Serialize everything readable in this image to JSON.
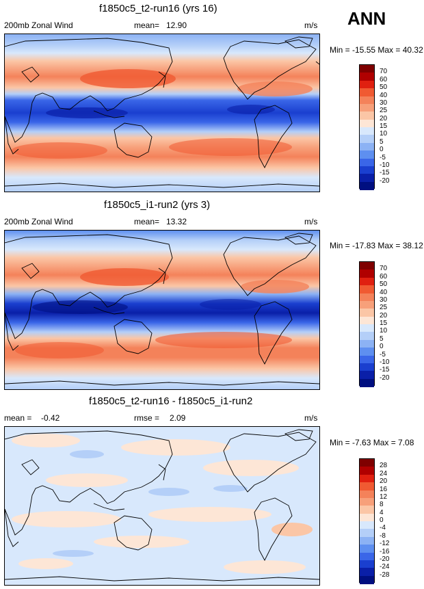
{
  "season": "ANN",
  "panels": [
    {
      "title": "f1850c5_t2-run16 (yrs 16)",
      "left_label": "200mb Zonal Wind",
      "stat_label": "mean=",
      "stat_value": "12.90",
      "units": "m/s",
      "minmax": "Min = -15.55 Max = 40.32",
      "colorbar_ticks": [
        "70",
        "60",
        "50",
        "40",
        "30",
        "25",
        "20",
        "15",
        "10",
        "5",
        "0",
        "-5",
        "-10",
        "-15",
        "-20"
      ],
      "colors": [
        "#7f0000",
        "#b00000",
        "#e02010",
        "#f05a32",
        "#f4825a",
        "#f7a07a",
        "#fbc6a6",
        "#fde6d6",
        "#d8e8fc",
        "#b4cff8",
        "#8cb2f4",
        "#5e8ff0",
        "#3a66e8",
        "#1a3fcf",
        "#0a1fa8",
        "#000f80"
      ]
    },
    {
      "title": "f1850c5_i1-run2 (yrs 3)",
      "left_label": "200mb Zonal Wind",
      "stat_label": "mean=",
      "stat_value": "13.32",
      "units": "m/s",
      "minmax": "Min = -17.83 Max = 38.12",
      "colorbar_ticks": [
        "70",
        "60",
        "50",
        "40",
        "30",
        "25",
        "20",
        "15",
        "10",
        "5",
        "0",
        "-5",
        "-10",
        "-15",
        "-20"
      ],
      "colors": [
        "#7f0000",
        "#b00000",
        "#e02010",
        "#f05a32",
        "#f4825a",
        "#f7a07a",
        "#fbc6a6",
        "#fde6d6",
        "#d8e8fc",
        "#b4cff8",
        "#8cb2f4",
        "#5e8ff0",
        "#3a66e8",
        "#1a3fcf",
        "#0a1fa8",
        "#000f80"
      ]
    },
    {
      "title": "f1850c5_t2-run16 - f1850c5_i1-run2",
      "left_label": "mean =",
      "left_value": "-0.42",
      "stat_label": "rmse =",
      "stat_value": "2.09",
      "units": "m/s",
      "minmax": "Min = -7.63 Max = 7.08",
      "colorbar_ticks": [
        "28",
        "24",
        "20",
        "16",
        "12",
        "8",
        "4",
        "0",
        "-4",
        "-8",
        "-12",
        "-16",
        "-20",
        "-24",
        "-28"
      ],
      "colors": [
        "#7f0000",
        "#b00000",
        "#e02010",
        "#f05a32",
        "#f4825a",
        "#f7a07a",
        "#fbc6a6",
        "#fde6d6",
        "#d8e8fc",
        "#b4cff8",
        "#8cb2f4",
        "#5e8ff0",
        "#3a66e8",
        "#1a3fcf",
        "#0a1fa8",
        "#000f80"
      ]
    }
  ]
}
